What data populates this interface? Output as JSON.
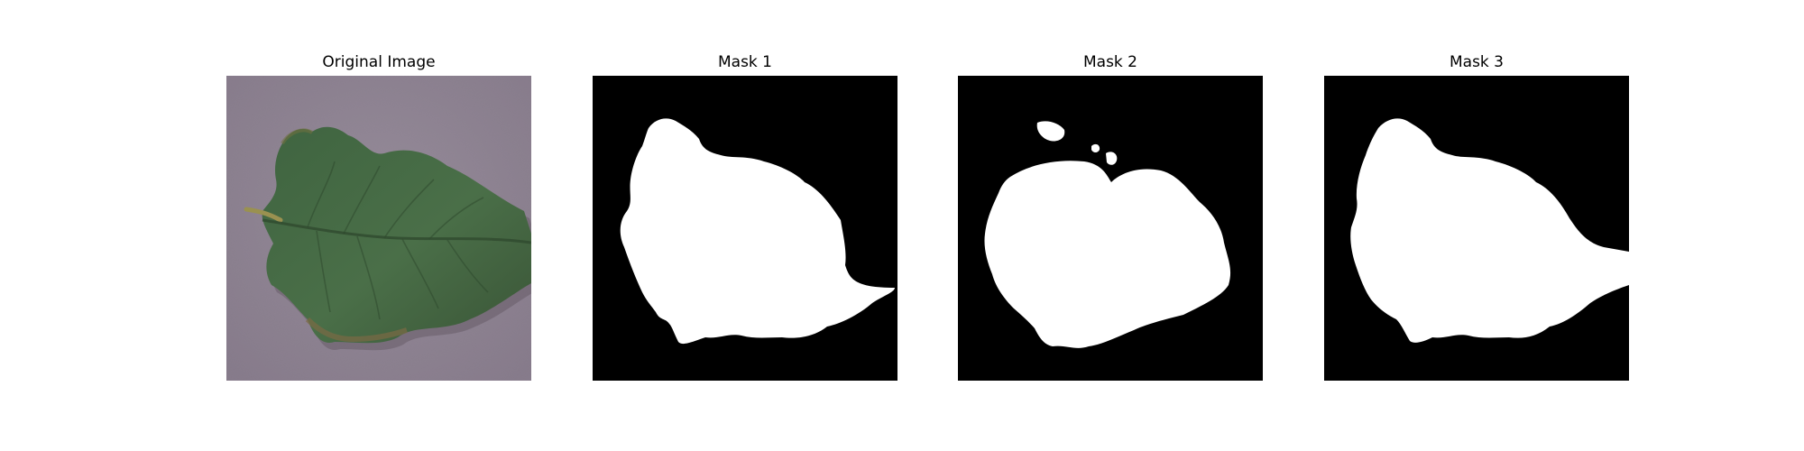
{
  "panels": [
    {
      "title": "Original Image",
      "kind": "photo"
    },
    {
      "title": "Mask 1",
      "kind": "mask"
    },
    {
      "title": "Mask 2",
      "kind": "mask"
    },
    {
      "title": "Mask 3",
      "kind": "mask"
    }
  ],
  "colors": {
    "mask_background": "#000000",
    "mask_foreground": "#ffffff",
    "photo_background": "#8d8290",
    "leaf_dark": "#3c5c3a",
    "leaf_mid": "#4d6e47",
    "leaf_edge": "#7a6a45"
  }
}
